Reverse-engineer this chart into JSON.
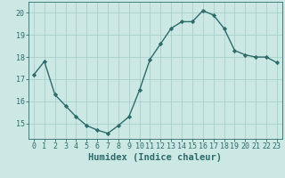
{
  "x": [
    0,
    1,
    2,
    3,
    4,
    5,
    6,
    7,
    8,
    9,
    10,
    11,
    12,
    13,
    14,
    15,
    16,
    17,
    18,
    19,
    20,
    21,
    22,
    23
  ],
  "y": [
    17.2,
    17.8,
    16.3,
    15.8,
    15.3,
    14.9,
    14.7,
    14.55,
    14.9,
    15.3,
    16.5,
    17.9,
    18.6,
    19.3,
    19.6,
    19.6,
    20.1,
    19.9,
    19.3,
    18.3,
    18.1,
    18.0,
    18.0,
    17.75
  ],
  "line_color": "#2e6b6b",
  "marker": "D",
  "marker_size": 2.2,
  "bg_color": "#cce8e4",
  "grid_color": "#aacfcc",
  "xlabel": "Humidex (Indice chaleur)",
  "ylim": [
    14.3,
    20.5
  ],
  "yticks": [
    15,
    16,
    17,
    18,
    19,
    20
  ],
  "xticks": [
    0,
    1,
    2,
    3,
    4,
    5,
    6,
    7,
    8,
    9,
    10,
    11,
    12,
    13,
    14,
    15,
    16,
    17,
    18,
    19,
    20,
    21,
    22,
    23
  ],
  "tick_font_size": 6.0,
  "label_font_size": 7.5
}
